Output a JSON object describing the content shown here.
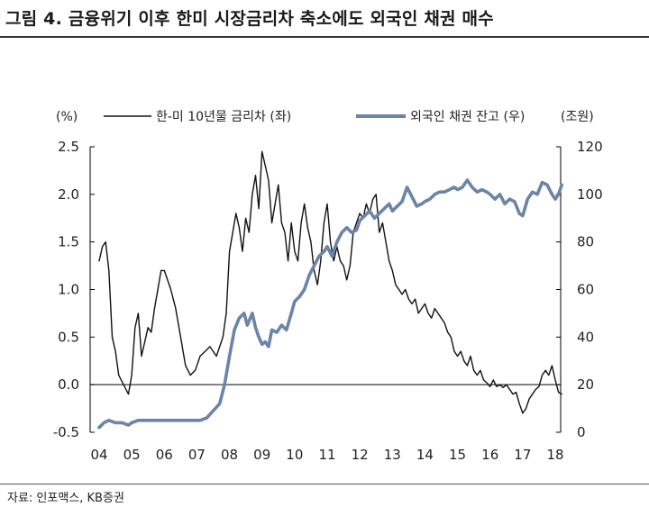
{
  "figure": {
    "title": "그림 4. 금융위기 이후 한미 시장금리차 축소에도 외국인 채권 매수",
    "source": "자료: 인포맥스, KB증권"
  },
  "chart_data": {
    "type": "line",
    "left_unit": "(%)",
    "right_unit": "(조원)",
    "x_tick_labels": [
      "04",
      "05",
      "06",
      "07",
      "08",
      "09",
      "10",
      "11",
      "12",
      "13",
      "14",
      "15",
      "16",
      "17",
      "18"
    ],
    "x_range": [
      2004.0,
      2018.25
    ],
    "ylim_left": [
      -0.5,
      2.5
    ],
    "yticks_left": [
      -0.5,
      0.0,
      0.5,
      1.0,
      1.5,
      2.0,
      2.5
    ],
    "ytick_labels_left": [
      "-0.5",
      "0.0",
      "0.5",
      "1.0",
      "1.5",
      "2.0",
      "2.5"
    ],
    "ylim_right": [
      0,
      120
    ],
    "yticks_right": [
      0,
      20,
      40,
      60,
      80,
      100,
      120
    ],
    "ytick_labels_right": [
      "0",
      "20",
      "40",
      "60",
      "80",
      "100",
      "120"
    ],
    "grid": false,
    "legend_position": "top",
    "series": [
      {
        "name": "한-미 10년물 금리차 (좌)",
        "axis": "left",
        "color": "#111111",
        "points": [
          [
            2004.0,
            1.3
          ],
          [
            2004.1,
            1.45
          ],
          [
            2004.2,
            1.5
          ],
          [
            2004.3,
            1.2
          ],
          [
            2004.4,
            0.5
          ],
          [
            2004.5,
            0.35
          ],
          [
            2004.6,
            0.1
          ],
          [
            2004.75,
            0.0
          ],
          [
            2004.9,
            -0.1
          ],
          [
            2005.0,
            0.1
          ],
          [
            2005.1,
            0.6
          ],
          [
            2005.2,
            0.75
          ],
          [
            2005.3,
            0.3
          ],
          [
            2005.4,
            0.45
          ],
          [
            2005.5,
            0.6
          ],
          [
            2005.6,
            0.55
          ],
          [
            2005.7,
            0.8
          ],
          [
            2005.8,
            1.0
          ],
          [
            2005.9,
            1.2
          ],
          [
            2006.0,
            1.2
          ],
          [
            2006.1,
            1.1
          ],
          [
            2006.2,
            1.0
          ],
          [
            2006.35,
            0.8
          ],
          [
            2006.5,
            0.5
          ],
          [
            2006.65,
            0.2
          ],
          [
            2006.8,
            0.1
          ],
          [
            2006.95,
            0.15
          ],
          [
            2007.1,
            0.3
          ],
          [
            2007.25,
            0.35
          ],
          [
            2007.4,
            0.4
          ],
          [
            2007.6,
            0.3
          ],
          [
            2007.8,
            0.5
          ],
          [
            2007.9,
            0.75
          ],
          [
            2008.0,
            1.4
          ],
          [
            2008.1,
            1.6
          ],
          [
            2008.2,
            1.8
          ],
          [
            2008.3,
            1.65
          ],
          [
            2008.4,
            1.4
          ],
          [
            2008.5,
            1.75
          ],
          [
            2008.6,
            1.6
          ],
          [
            2008.7,
            2.0
          ],
          [
            2008.8,
            2.2
          ],
          [
            2008.9,
            1.85
          ],
          [
            2009.0,
            2.45
          ],
          [
            2009.1,
            2.3
          ],
          [
            2009.2,
            2.15
          ],
          [
            2009.3,
            1.7
          ],
          [
            2009.4,
            1.9
          ],
          [
            2009.5,
            2.1
          ],
          [
            2009.6,
            1.7
          ],
          [
            2009.7,
            1.6
          ],
          [
            2009.8,
            1.3
          ],
          [
            2009.9,
            1.7
          ],
          [
            2010.0,
            1.4
          ],
          [
            2010.1,
            1.3
          ],
          [
            2010.2,
            1.7
          ],
          [
            2010.3,
            1.9
          ],
          [
            2010.4,
            1.65
          ],
          [
            2010.5,
            1.5
          ],
          [
            2010.6,
            1.2
          ],
          [
            2010.7,
            1.05
          ],
          [
            2010.8,
            1.3
          ],
          [
            2010.9,
            1.7
          ],
          [
            2011.0,
            1.9
          ],
          [
            2011.1,
            1.5
          ],
          [
            2011.2,
            1.3
          ],
          [
            2011.3,
            1.45
          ],
          [
            2011.4,
            1.3
          ],
          [
            2011.5,
            1.25
          ],
          [
            2011.6,
            1.1
          ],
          [
            2011.7,
            1.25
          ],
          [
            2011.8,
            1.6
          ],
          [
            2011.9,
            1.7
          ],
          [
            2012.0,
            1.8
          ],
          [
            2012.1,
            1.75
          ],
          [
            2012.2,
            1.9
          ],
          [
            2012.3,
            1.8
          ],
          [
            2012.4,
            1.95
          ],
          [
            2012.5,
            2.0
          ],
          [
            2012.6,
            1.6
          ],
          [
            2012.7,
            1.7
          ],
          [
            2012.8,
            1.5
          ],
          [
            2012.9,
            1.3
          ],
          [
            2013.0,
            1.2
          ],
          [
            2013.1,
            1.05
          ],
          [
            2013.2,
            1.0
          ],
          [
            2013.3,
            0.95
          ],
          [
            2013.4,
            1.0
          ],
          [
            2013.5,
            0.9
          ],
          [
            2013.6,
            0.85
          ],
          [
            2013.7,
            0.9
          ],
          [
            2013.8,
            0.75
          ],
          [
            2013.9,
            0.8
          ],
          [
            2014.0,
            0.85
          ],
          [
            2014.1,
            0.75
          ],
          [
            2014.2,
            0.7
          ],
          [
            2014.3,
            0.8
          ],
          [
            2014.4,
            0.75
          ],
          [
            2014.5,
            0.7
          ],
          [
            2014.6,
            0.65
          ],
          [
            2014.7,
            0.55
          ],
          [
            2014.8,
            0.5
          ],
          [
            2014.9,
            0.35
          ],
          [
            2015.0,
            0.3
          ],
          [
            2015.1,
            0.35
          ],
          [
            2015.2,
            0.25
          ],
          [
            2015.3,
            0.2
          ],
          [
            2015.4,
            0.3
          ],
          [
            2015.5,
            0.15
          ],
          [
            2015.6,
            0.1
          ],
          [
            2015.7,
            0.15
          ],
          [
            2015.8,
            0.05
          ],
          [
            2015.9,
            0.02
          ],
          [
            2016.0,
            -0.02
          ],
          [
            2016.1,
            0.05
          ],
          [
            2016.2,
            -0.02
          ],
          [
            2016.3,
            0.0
          ],
          [
            2016.4,
            -0.03
          ],
          [
            2016.5,
            0.0
          ],
          [
            2016.6,
            -0.05
          ],
          [
            2016.7,
            -0.1
          ],
          [
            2016.8,
            -0.08
          ],
          [
            2016.9,
            -0.2
          ],
          [
            2017.0,
            -0.3
          ],
          [
            2017.1,
            -0.25
          ],
          [
            2017.2,
            -0.15
          ],
          [
            2017.3,
            -0.1
          ],
          [
            2017.4,
            -0.05
          ],
          [
            2017.5,
            -0.02
          ],
          [
            2017.6,
            0.1
          ],
          [
            2017.7,
            0.15
          ],
          [
            2017.8,
            0.1
          ],
          [
            2017.9,
            0.2
          ],
          [
            2018.0,
            0.05
          ],
          [
            2018.1,
            -0.08
          ],
          [
            2018.2,
            -0.1
          ]
        ]
      },
      {
        "name": "외국인 채권 잔고 (우)",
        "axis": "right",
        "color": "#6b84a8",
        "points": [
          [
            2004.0,
            2
          ],
          [
            2004.15,
            4
          ],
          [
            2004.3,
            5
          ],
          [
            2004.5,
            4
          ],
          [
            2004.7,
            4
          ],
          [
            2004.9,
            3
          ],
          [
            2005.0,
            4
          ],
          [
            2005.2,
            5
          ],
          [
            2005.5,
            5
          ],
          [
            2005.8,
            5
          ],
          [
            2006.0,
            5
          ],
          [
            2006.3,
            5
          ],
          [
            2006.6,
            5
          ],
          [
            2006.9,
            5
          ],
          [
            2007.1,
            5
          ],
          [
            2007.3,
            6
          ],
          [
            2007.5,
            9
          ],
          [
            2007.7,
            12
          ],
          [
            2007.85,
            20
          ],
          [
            2008.0,
            32
          ],
          [
            2008.15,
            43
          ],
          [
            2008.3,
            48
          ],
          [
            2008.45,
            50
          ],
          [
            2008.55,
            45
          ],
          [
            2008.7,
            50
          ],
          [
            2008.8,
            44
          ],
          [
            2008.9,
            40
          ],
          [
            2009.0,
            37
          ],
          [
            2009.1,
            38
          ],
          [
            2009.2,
            36
          ],
          [
            2009.3,
            43
          ],
          [
            2009.45,
            42
          ],
          [
            2009.6,
            45
          ],
          [
            2009.75,
            43
          ],
          [
            2009.9,
            50
          ],
          [
            2010.0,
            55
          ],
          [
            2010.15,
            57
          ],
          [
            2010.3,
            60
          ],
          [
            2010.45,
            66
          ],
          [
            2010.6,
            70
          ],
          [
            2010.75,
            74
          ],
          [
            2010.9,
            76
          ],
          [
            2011.0,
            78
          ],
          [
            2011.15,
            74
          ],
          [
            2011.3,
            80
          ],
          [
            2011.45,
            84
          ],
          [
            2011.6,
            86
          ],
          [
            2011.75,
            84
          ],
          [
            2011.9,
            85
          ],
          [
            2012.0,
            89
          ],
          [
            2012.15,
            91
          ],
          [
            2012.3,
            93
          ],
          [
            2012.45,
            90
          ],
          [
            2012.6,
            92
          ],
          [
            2012.75,
            94
          ],
          [
            2012.9,
            96
          ],
          [
            2013.0,
            93
          ],
          [
            2013.15,
            95
          ],
          [
            2013.3,
            97
          ],
          [
            2013.45,
            103
          ],
          [
            2013.6,
            99
          ],
          [
            2013.75,
            95
          ],
          [
            2013.9,
            96
          ],
          [
            2014.0,
            97
          ],
          [
            2014.15,
            98
          ],
          [
            2014.3,
            100
          ],
          [
            2014.45,
            101
          ],
          [
            2014.6,
            101
          ],
          [
            2014.75,
            102
          ],
          [
            2014.9,
            103
          ],
          [
            2015.0,
            102
          ],
          [
            2015.15,
            103
          ],
          [
            2015.3,
            106
          ],
          [
            2015.45,
            103
          ],
          [
            2015.6,
            101
          ],
          [
            2015.75,
            102
          ],
          [
            2015.9,
            101
          ],
          [
            2016.0,
            100
          ],
          [
            2016.15,
            98
          ],
          [
            2016.3,
            100
          ],
          [
            2016.45,
            96
          ],
          [
            2016.6,
            98
          ],
          [
            2016.75,
            97
          ],
          [
            2016.9,
            92
          ],
          [
            2017.0,
            91
          ],
          [
            2017.15,
            98
          ],
          [
            2017.3,
            101
          ],
          [
            2017.45,
            100
          ],
          [
            2017.6,
            105
          ],
          [
            2017.75,
            104
          ],
          [
            2017.9,
            100
          ],
          [
            2018.0,
            98
          ],
          [
            2018.1,
            100
          ],
          [
            2018.2,
            104
          ]
        ]
      }
    ]
  }
}
